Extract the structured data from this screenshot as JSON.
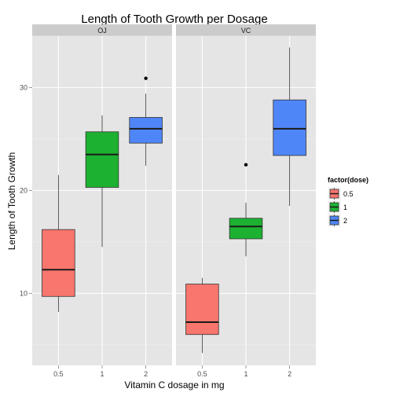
{
  "chart_data": {
    "type": "boxplot",
    "title": "Length of Tooth Growth per Dosage",
    "xlabel": "Vitamin C dosage in mg",
    "ylabel": "Length of Tooth Growth",
    "ylim": [
      3,
      35
    ],
    "y_ticks": [
      10,
      20,
      30
    ],
    "categories": [
      "0.5",
      "1",
      "2"
    ],
    "legend": {
      "title": "factor(dose)",
      "position": "right",
      "entries": [
        {
          "label": "0.5",
          "color": "#f8766d"
        },
        {
          "label": "1",
          "color": "#1db132"
        },
        {
          "label": "2",
          "color": "#4f86f7"
        }
      ]
    },
    "facets": [
      {
        "label": "OJ",
        "boxes": [
          {
            "dose": "0.5",
            "whisker_low": 8.2,
            "q1": 9.7,
            "median": 12.3,
            "q3": 16.2,
            "whisker_high": 21.5,
            "outliers": []
          },
          {
            "dose": "1",
            "whisker_low": 14.5,
            "q1": 20.3,
            "median": 23.5,
            "q3": 25.7,
            "whisker_high": 27.3,
            "outliers": []
          },
          {
            "dose": "2",
            "whisker_low": 22.4,
            "q1": 24.6,
            "median": 26.0,
            "q3": 27.1,
            "whisker_high": 29.4,
            "outliers": [
              30.9
            ]
          }
        ]
      },
      {
        "label": "VC",
        "boxes": [
          {
            "dose": "0.5",
            "whisker_low": 4.2,
            "q1": 6.0,
            "median": 7.2,
            "q3": 10.9,
            "whisker_high": 11.5,
            "outliers": []
          },
          {
            "dose": "1",
            "whisker_low": 13.6,
            "q1": 15.3,
            "median": 16.5,
            "q3": 17.3,
            "whisker_high": 18.8,
            "outliers": [
              22.5
            ]
          },
          {
            "dose": "2",
            "whisker_low": 18.5,
            "q1": 23.4,
            "median": 26.0,
            "q3": 28.8,
            "whisker_high": 33.9,
            "outliers": []
          }
        ]
      }
    ]
  }
}
